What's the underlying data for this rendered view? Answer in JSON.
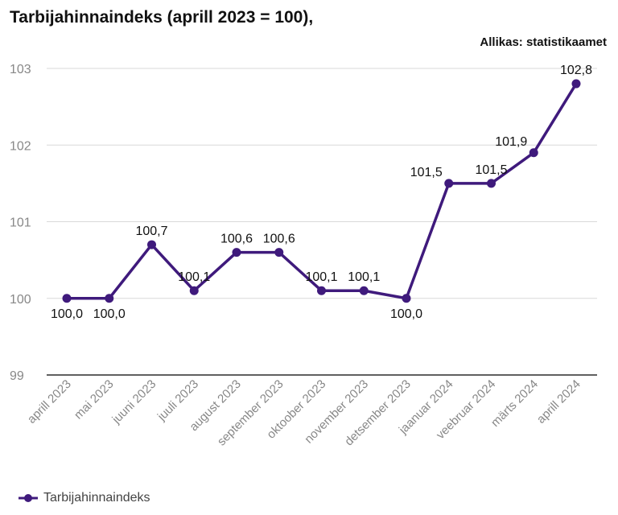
{
  "source": "Allikas: statistikaamet",
  "colors": {
    "series": "#3f1a7c",
    "grid": "#d9d9d9",
    "axis": "#000000",
    "tick": "#888888"
  },
  "chart_data": {
    "type": "line",
    "title": "Tarbijahinnaindeks (aprill 2023 = 100),",
    "xlabel": "",
    "ylabel": "",
    "ylim": [
      99,
      103
    ],
    "yticks": [
      "99",
      "100",
      "101",
      "102",
      "103"
    ],
    "grid": true,
    "legend_position": "bottom-left",
    "categories": [
      "aprill 2023",
      "mai 2023",
      "juuni 2023",
      "juuli 2023",
      "august 2023",
      "september 2023",
      "oktoober 2023",
      "november 2023",
      "detsember 2023",
      "jaanuar 2024",
      "veebruar 2024",
      "märts 2024",
      "aprill 2024"
    ],
    "series": [
      {
        "name": "Tarbijahinnaindeks",
        "values": [
          100.0,
          100.0,
          100.7,
          100.1,
          100.6,
          100.6,
          100.1,
          100.1,
          100.0,
          101.5,
          101.5,
          101.9,
          102.8
        ],
        "labels": [
          "100,0",
          "100,0",
          "100,7",
          "100,1",
          "100,6",
          "100,6",
          "100,1",
          "100,1",
          "100,0",
          "101,5",
          "101,5",
          "101,9",
          "102,8"
        ]
      }
    ]
  }
}
